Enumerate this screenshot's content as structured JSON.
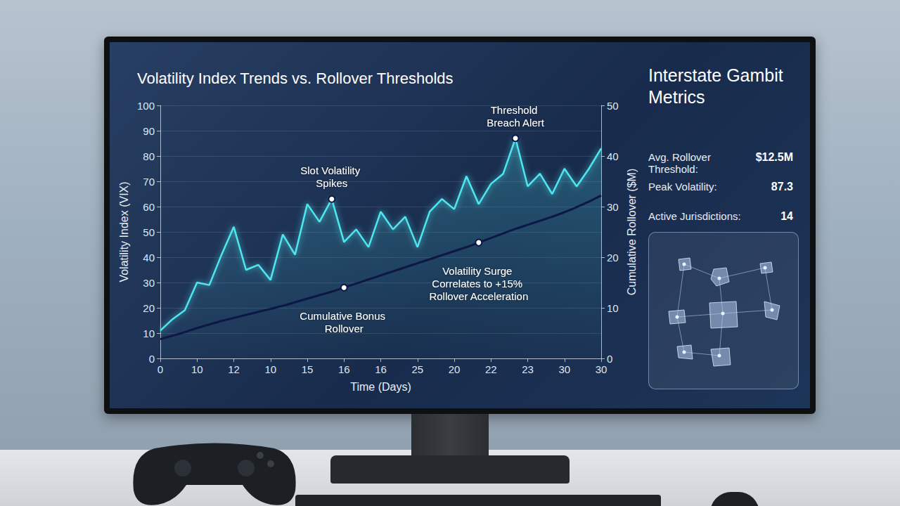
{
  "chart_data": {
    "type": "line",
    "title": "Volatility Index Trends vs. Rollover Thresholds",
    "x_label": "Time (Days)",
    "y_label": "Volatility Index (VIX)",
    "y2_label": "Cumulative Rollover ($M)",
    "categories": [
      "0",
      null,
      null,
      "10",
      null,
      null,
      "12",
      null,
      null,
      "10",
      null,
      null,
      "15",
      null,
      null,
      "16",
      null,
      null,
      "16",
      null,
      null,
      "25",
      null,
      null,
      "20",
      null,
      null,
      "22",
      null,
      null,
      "23",
      null,
      null,
      "30",
      null,
      null,
      "30"
    ],
    "ylim": [
      0,
      100
    ],
    "yticks": [
      0,
      10,
      20,
      30,
      40,
      50,
      60,
      70,
      80,
      90,
      100
    ],
    "y2lim": [
      0,
      50
    ],
    "y2ticks": [
      0,
      10,
      20,
      30,
      40,
      50
    ],
    "grid": true,
    "series": [
      {
        "color": "#4fe6f0",
        "values": [
          11,
          15.5,
          19,
          30,
          29,
          41,
          52,
          35,
          37,
          31,
          49,
          41,
          61,
          54,
          63,
          46,
          51,
          44,
          58,
          51,
          56,
          44,
          58,
          63,
          59,
          72,
          61,
          69,
          73,
          87,
          68,
          73,
          65,
          75,
          68,
          75,
          83
        ],
        "annotations": [
          {
            "text": "Slot Volatility Spikes",
            "point": 14
          },
          {
            "text": "Threshold Breach Alert",
            "point": 29
          }
        ]
      },
      {
        "color": "#0c1746",
        "axis": "y2",
        "values": [
          3.8,
          4.5,
          5.2,
          6.0,
          6.7,
          7.4,
          8.0,
          8.6,
          9.2,
          9.8,
          10.4,
          11.1,
          11.8,
          12.5,
          13.2,
          14.0,
          14.8,
          15.6,
          16.4,
          17.2,
          18.0,
          18.8,
          19.6,
          20.4,
          21.2,
          22.0,
          22.9,
          23.8,
          24.7,
          25.6,
          26.4,
          27.2,
          28.0,
          28.9,
          29.9,
          31.0,
          32.2
        ],
        "annotations": [
          {
            "text": "Cumulative Bonus Rollover",
            "point": 15
          },
          {
            "text": "Volatility Surge Correlates to +15% Rollover Acceleration",
            "point": 26
          }
        ]
      }
    ]
  },
  "panel": {
    "title": "Interstate Gambit Metrics",
    "metrics": [
      {
        "label": "Avg. Rollover Threshold:",
        "value": "$12.5M"
      },
      {
        "label": "Peak Volatility:",
        "value": "87.3"
      },
      {
        "label": "Active Jurisdictions:",
        "value": "14"
      }
    ]
  }
}
